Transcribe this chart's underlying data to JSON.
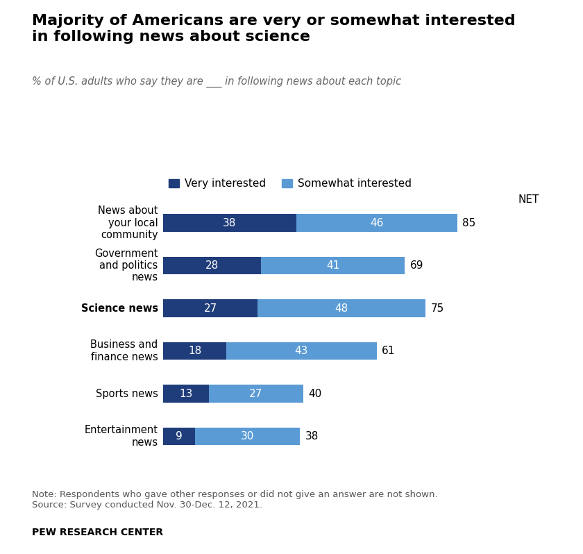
{
  "title": "Majority of Americans are very or somewhat interested\nin following news about science",
  "subtitle": "% of U.S. adults who say they are ___ in following news about each topic",
  "categories": [
    "News about\nyour local\ncommunity",
    "Government\nand politics\nnews",
    "Science news",
    "Business and\nfinance news",
    "Sports news",
    "Entertainment\nnews"
  ],
  "science_bold_index": 2,
  "very_interested": [
    38,
    28,
    27,
    18,
    13,
    9
  ],
  "somewhat_interested": [
    46,
    41,
    48,
    43,
    27,
    30
  ],
  "net": [
    85,
    69,
    75,
    61,
    40,
    38
  ],
  "color_very": "#1f3d7a",
  "color_somewhat": "#5b9bd5",
  "bar_height": 0.42,
  "legend_labels": [
    "Very interested",
    "Somewhat interested"
  ],
  "note": "Note: Respondents who gave other responses or did not give an answer are not shown.\nSource: Survey conducted Nov. 30-Dec. 12, 2021.",
  "source_label": "PEW RESEARCH CENTER",
  "xlim_max": 100,
  "net_label": "NET",
  "background_color": "#ffffff"
}
